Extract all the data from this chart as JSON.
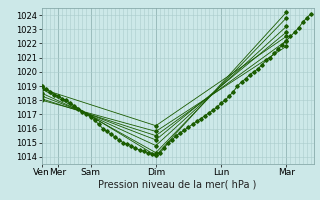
{
  "bg_color": "#cce8e8",
  "grid_color": "#aacccc",
  "line_color": "#1a5c00",
  "marker_color": "#1a5c00",
  "xlabel_text": "Pression niveau de la mer( hPa )",
  "x_tick_labels": [
    "Ven",
    "Mer",
    "Sam",
    "Dim",
    "Lun",
    "Mar"
  ],
  "x_tick_positions": [
    0,
    12,
    36,
    84,
    132,
    180
  ],
  "ylim": [
    1013.5,
    1024.5
  ],
  "yticks": [
    1014,
    1015,
    1016,
    1017,
    1018,
    1019,
    1020,
    1021,
    1022,
    1023,
    1024
  ],
  "xlim": [
    0,
    200
  ],
  "vlines": [
    12,
    36,
    84,
    132,
    180
  ],
  "main_line": {
    "x": [
      0,
      3,
      6,
      9,
      12,
      15,
      18,
      21,
      24,
      27,
      30,
      33,
      36,
      39,
      42,
      45,
      48,
      51,
      54,
      57,
      60,
      63,
      66,
      69,
      72,
      75,
      78,
      81,
      84,
      87,
      90,
      93,
      96,
      99,
      102,
      105,
      108,
      111,
      114,
      117,
      120,
      123,
      126,
      129,
      132,
      135,
      138,
      141,
      144,
      147,
      150,
      153,
      156,
      159,
      162,
      165,
      168,
      171,
      174,
      177,
      180,
      183,
      186,
      189,
      192,
      195,
      198
    ],
    "y": [
      1019.0,
      1018.8,
      1018.6,
      1018.4,
      1018.3,
      1018.1,
      1018.0,
      1017.8,
      1017.6,
      1017.4,
      1017.2,
      1017.0,
      1016.8,
      1016.6,
      1016.3,
      1016.0,
      1015.8,
      1015.6,
      1015.4,
      1015.2,
      1015.0,
      1014.9,
      1014.8,
      1014.6,
      1014.5,
      1014.4,
      1014.3,
      1014.2,
      1014.1,
      1014.3,
      1014.6,
      1015.0,
      1015.2,
      1015.5,
      1015.7,
      1015.9,
      1016.1,
      1016.3,
      1016.5,
      1016.7,
      1016.9,
      1017.1,
      1017.3,
      1017.5,
      1017.8,
      1018.0,
      1018.3,
      1018.6,
      1019.0,
      1019.3,
      1019.5,
      1019.8,
      1020.0,
      1020.2,
      1020.5,
      1020.8,
      1021.0,
      1021.3,
      1021.6,
      1021.9,
      1022.2,
      1022.5,
      1022.8,
      1023.1,
      1023.5,
      1023.8,
      1024.1
    ]
  },
  "fan_lines": [
    {
      "x": [
        0,
        84,
        180
      ],
      "y": [
        1019.0,
        1014.1,
        1024.2
      ]
    },
    {
      "x": [
        0,
        84,
        180
      ],
      "y": [
        1018.8,
        1014.3,
        1023.8
      ]
    },
    {
      "x": [
        0,
        84,
        180
      ],
      "y": [
        1018.5,
        1014.8,
        1023.2
      ]
    },
    {
      "x": [
        0,
        84,
        180
      ],
      "y": [
        1018.3,
        1015.2,
        1022.8
      ]
    },
    {
      "x": [
        0,
        84,
        180
      ],
      "y": [
        1018.1,
        1015.5,
        1022.2
      ]
    },
    {
      "x": [
        0,
        84,
        180
      ],
      "y": [
        1018.0,
        1015.8,
        1021.8
      ]
    },
    {
      "x": [
        0,
        84,
        180
      ],
      "y": [
        1018.8,
        1016.2,
        1022.5
      ]
    }
  ]
}
